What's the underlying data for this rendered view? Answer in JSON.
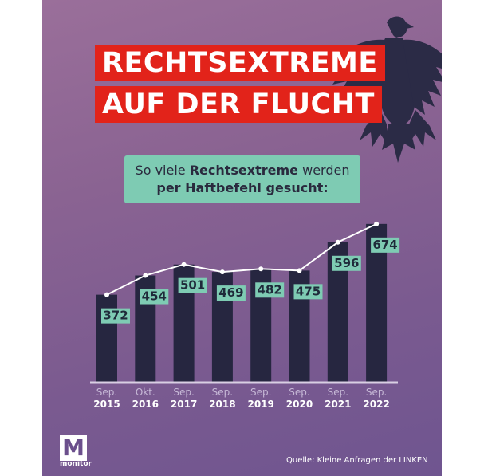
{
  "headline": {
    "line1": "RECHTSEXTREME",
    "line2": "AUF DER FLUCHT"
  },
  "subtitle": {
    "part1": "So viele ",
    "bold1": "Rechtsextreme",
    "part2": " werden",
    "bold2": "per Haftbefehl gesucht:"
  },
  "logo": {
    "letter": "M",
    "name": "monitor"
  },
  "source": "Quelle: Kleine Anfragen der LINKEN",
  "colors": {
    "headline_bg": "#e2231a",
    "label_bg": "#7ecbb3",
    "bar": "#262640",
    "line": "#ffffff"
  },
  "icons": [
    "eagle-icon"
  ],
  "chart_data": {
    "type": "bar",
    "categories": [
      {
        "month": "Sep.",
        "year": "2015"
      },
      {
        "month": "Okt.",
        "year": "2016"
      },
      {
        "month": "Sep.",
        "year": "2017"
      },
      {
        "month": "Sep.",
        "year": "2018"
      },
      {
        "month": "Sep.",
        "year": "2019"
      },
      {
        "month": "Sep.",
        "year": "2020"
      },
      {
        "month": "Sep.",
        "year": "2021"
      },
      {
        "month": "Sep.",
        "year": "2022"
      }
    ],
    "values": [
      372,
      454,
      501,
      469,
      482,
      475,
      596,
      674
    ],
    "overlay_line": true,
    "data_labels": true,
    "grid": false
  }
}
